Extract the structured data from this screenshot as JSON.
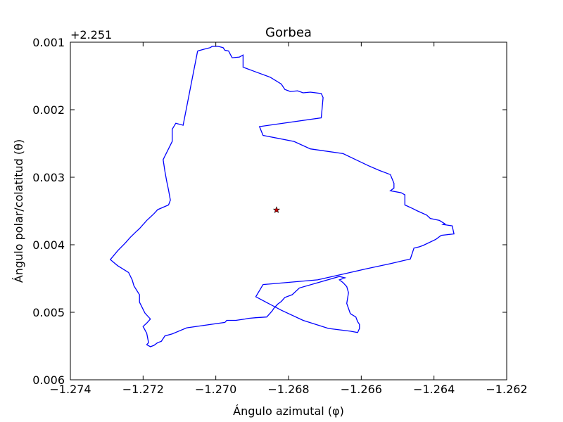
{
  "chart_data": {
    "type": "line",
    "title": "Gorbea",
    "xlabel": "Ángulo azimutal (φ)",
    "ylabel": "Ángulo polar/colatitud (θ)",
    "y_offset_label": "+2.251",
    "xlim": [
      -1.274,
      -1.262
    ],
    "ylim": [
      0.006,
      0.001
    ],
    "y_inverted": true,
    "x_ticks": [
      {
        "value": -1.274,
        "label": "−1.274"
      },
      {
        "value": -1.272,
        "label": "−1.272"
      },
      {
        "value": -1.27,
        "label": "−1.270"
      },
      {
        "value": -1.268,
        "label": "−1.268"
      },
      {
        "value": -1.266,
        "label": "−1.266"
      },
      {
        "value": -1.264,
        "label": "−1.264"
      },
      {
        "value": -1.262,
        "label": "−1.262"
      }
    ],
    "y_ticks": [
      {
        "value": 0.001,
        "label": "0.001"
      },
      {
        "value": 0.002,
        "label": "0.002"
      },
      {
        "value": 0.003,
        "label": "0.003"
      },
      {
        "value": 0.004,
        "label": "0.004"
      },
      {
        "value": 0.005,
        "label": "0.005"
      },
      {
        "value": 0.006,
        "label": "0.006"
      }
    ],
    "grid": false,
    "line_color": "#0000ff",
    "marker_color": "#cc0000",
    "series": [
      {
        "x": [
          -1.2705,
          -1.2703,
          -1.27015,
          -1.2701,
          -1.26995,
          -1.2698,
          -1.26975,
          -1.26965,
          -1.2696,
          -1.26955,
          -1.26935,
          -1.26925,
          -1.26925,
          -1.26895,
          -1.2685,
          -1.2682,
          -1.2681,
          -1.26795,
          -1.26775,
          -1.2676,
          -1.2674,
          -1.2671,
          -1.26705,
          -1.2671,
          -1.2688,
          -1.2687,
          -1.26785,
          -1.2674,
          -1.2665,
          -1.2658,
          -1.2655,
          -1.2652,
          -1.2651,
          -1.2651,
          -1.2652,
          -1.2649,
          -1.2648,
          -1.2648,
          -1.2646,
          -1.26445,
          -1.2642,
          -1.2641,
          -1.26385,
          -1.2637,
          -1.26375,
          -1.2635,
          -1.26345,
          -1.2638,
          -1.26395,
          -1.2643,
          -1.2644,
          -1.26455,
          -1.26465,
          -1.2652,
          -1.2659,
          -1.2663,
          -1.2672,
          -1.2687,
          -1.2689,
          -1.2682,
          -1.2676,
          -1.2669,
          -1.2663,
          -1.2661,
          -1.26605,
          -1.26605,
          -1.2661,
          -1.26615,
          -1.2663,
          -1.2664,
          -1.26635,
          -1.2664,
          -1.2665,
          -1.2666,
          -1.26645,
          -1.2666,
          -1.2677,
          -1.2679,
          -1.2681,
          -1.2682,
          -1.2683,
          -1.2684,
          -1.26845,
          -1.2686,
          -1.2689,
          -1.2691,
          -1.2692,
          -1.26945,
          -1.2697,
          -1.26975,
          -1.2708,
          -1.2712,
          -1.2714,
          -1.2715,
          -1.2716,
          -1.2717,
          -1.2718,
          -1.2719,
          -1.27185,
          -1.2719,
          -1.272,
          -1.2719,
          -1.2718,
          -1.27195,
          -1.2721,
          -1.2721,
          -1.27225,
          -1.2723,
          -1.2724,
          -1.2727,
          -1.2729,
          -1.2727,
          -1.2725,
          -1.27235,
          -1.2722,
          -1.2721,
          -1.2719,
          -1.2717,
          -1.2716,
          -1.2713,
          -1.27125,
          -1.2713,
          -1.27135,
          -1.2714,
          -1.27145,
          -1.2712,
          -1.2712,
          -1.2711,
          -1.2709,
          -1.2705
        ],
        "y": [
          0.00113,
          0.0011,
          0.00108,
          0.00106,
          0.00106,
          0.00108,
          0.00112,
          0.00113,
          0.00118,
          0.00123,
          0.00122,
          0.00119,
          0.00137,
          0.00143,
          0.00152,
          0.00162,
          0.0017,
          0.00173,
          0.00172,
          0.00175,
          0.00174,
          0.00176,
          0.00182,
          0.00212,
          0.00225,
          0.00238,
          0.00247,
          0.00258,
          0.00265,
          0.00283,
          0.0029,
          0.00296,
          0.00309,
          0.00316,
          0.0032,
          0.00323,
          0.00326,
          0.00341,
          0.00346,
          0.0035,
          0.00356,
          0.00361,
          0.00364,
          0.00369,
          0.0037,
          0.00372,
          0.00384,
          0.00386,
          0.00392,
          0.00401,
          0.00403,
          0.00405,
          0.00421,
          0.00428,
          0.00436,
          0.00441,
          0.00452,
          0.00459,
          0.00477,
          0.00497,
          0.00512,
          0.00524,
          0.00528,
          0.0053,
          0.00524,
          0.00518,
          0.00514,
          0.00507,
          0.00502,
          0.00487,
          0.00471,
          0.00462,
          0.00456,
          0.00452,
          0.00449,
          0.00447,
          0.00464,
          0.00474,
          0.00478,
          0.00484,
          0.00488,
          0.00494,
          0.00498,
          0.00507,
          0.00508,
          0.00509,
          0.0051,
          0.00512,
          0.00512,
          0.00515,
          0.00523,
          0.00532,
          0.00535,
          0.00543,
          0.00545,
          0.00549,
          0.00551,
          0.00548,
          0.00545,
          0.00531,
          0.00521,
          0.00516,
          0.0051,
          0.00501,
          0.00485,
          0.00474,
          0.00461,
          0.00452,
          0.00441,
          0.00431,
          0.00422,
          0.00409,
          0.00398,
          0.00389,
          0.00381,
          0.00376,
          0.00364,
          0.00354,
          0.00348,
          0.00341,
          0.00334,
          0.00319,
          0.00306,
          0.00291,
          0.00274,
          0.00247,
          0.00229,
          0.0022,
          0.00223,
          0.00113
        ]
      }
    ],
    "marker": {
      "x": -1.26833,
      "y": 0.003485,
      "symbol": "star"
    }
  }
}
